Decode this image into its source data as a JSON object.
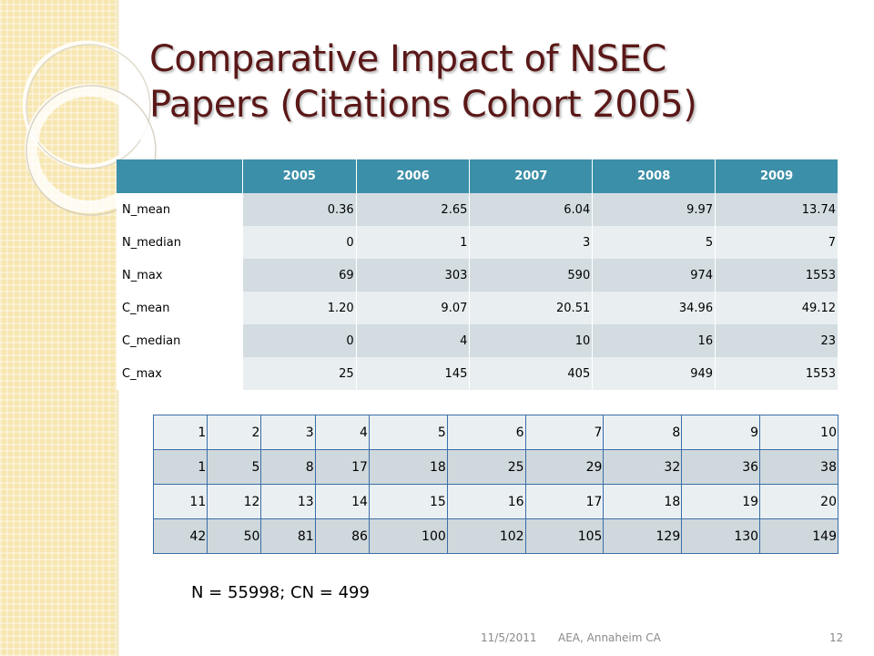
{
  "slide": {
    "title_line1": "Comparative Impact of NSEC",
    "title_line2": "Papers (Citations Cohort 2005)"
  },
  "table1": {
    "headers": [
      "",
      "2005",
      "2006",
      "2007",
      "2008",
      "2009"
    ],
    "rows": [
      [
        "N_mean",
        "0.36",
        "2.65",
        "6.04",
        "9.97",
        "13.74"
      ],
      [
        "N_median",
        "0",
        "1",
        "3",
        "5",
        "7"
      ],
      [
        "N_max",
        "69",
        "303",
        "590",
        "974",
        "1553"
      ],
      [
        "C_mean",
        "1.20",
        "9.07",
        "20.51",
        "34.96",
        "49.12"
      ],
      [
        "C_median",
        "0",
        "4",
        "10",
        "16",
        "23"
      ],
      [
        "C_max",
        "25",
        "145",
        "405",
        "949",
        "1553"
      ]
    ]
  },
  "table2": {
    "rows": [
      [
        "1",
        "2",
        "3",
        "4",
        "5",
        "6",
        "7",
        "8",
        "9",
        "10"
      ],
      [
        "1",
        "5",
        "8",
        "17",
        "18",
        "25",
        "29",
        "32",
        "36",
        "38"
      ],
      [
        "11",
        "12",
        "13",
        "14",
        "15",
        "16",
        "17",
        "18",
        "19",
        "20"
      ],
      [
        "42",
        "50",
        "81",
        "86",
        "100",
        "102",
        "105",
        "129",
        "130",
        "149"
      ]
    ]
  },
  "note": "N = 55998; CN = 499",
  "footer": {
    "date": "11/5/2011",
    "event": "AEA, Annaheim CA",
    "page": "12"
  }
}
